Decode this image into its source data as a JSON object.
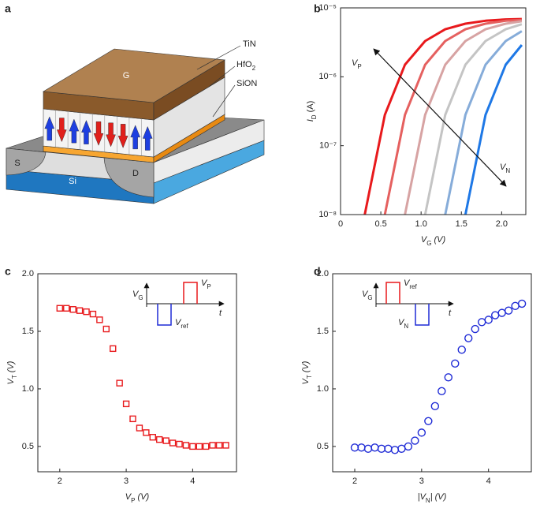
{
  "panel_labels": [
    "a",
    "b",
    "c",
    "d"
  ],
  "diagram": {
    "labels": {
      "tin": "TiN",
      "hfo2": [
        {
          "t": "HfO"
        },
        {
          "sub": "2"
        }
      ],
      "sion": "SiON",
      "gate": "G",
      "source": "S",
      "drain": "D",
      "substrate": "Si"
    }
  },
  "chart_data": [
    {
      "type": "line",
      "x": [
        0.3,
        0.55,
        0.8,
        1.05,
        1.3,
        1.55,
        1.8,
        2.05,
        2.25
      ],
      "xlim": [
        0,
        2.3
      ],
      "xticks": [
        0,
        0.5,
        {
          "value": 1,
          "label": "1.0"
        },
        1.5,
        {
          "value": 2,
          "label": "2.0"
        }
      ],
      "ylog": true,
      "ylim": [
        1e-08,
        1e-05
      ],
      "yticks": [
        {
          "value": 1e-08,
          "label": "10⁻⁸"
        },
        {
          "value": 1e-07,
          "label": "10⁻⁷"
        },
        {
          "value": 1e-06,
          "label": "10⁻⁶"
        },
        {
          "value": 1e-05,
          "label": "10⁻⁵"
        }
      ],
      "xlabel": [
        {
          "t": "V"
        },
        {
          "sub": "G"
        },
        {
          "t": " (V)"
        }
      ],
      "ylabel": [
        {
          "t": "I"
        },
        {
          "sub": "D"
        },
        {
          "t": " (A)"
        }
      ],
      "annotations": [
        [
          {
            "t": "V"
          },
          {
            "sub": "P"
          }
        ],
        [
          {
            "t": "V"
          },
          {
            "sub": "N"
          }
        ]
      ],
      "series": [
        {
          "color": "#e8191c",
          "values": [
            1e-08,
            2.8e-07,
            1.5e-06,
            3.3e-06,
            4.9e-06,
            5.9e-06,
            6.5e-06,
            6.8e-06,
            6.9e-06
          ]
        },
        {
          "color": "#e5605f",
          "values": [
            null,
            1e-08,
            2.8e-07,
            1.5e-06,
            3.3e-06,
            4.9e-06,
            5.9e-06,
            6.5e-06,
            6.7e-06
          ]
        },
        {
          "color": "#d7a3a3",
          "values": [
            null,
            null,
            1e-08,
            2.8e-07,
            1.5e-06,
            3.3e-06,
            4.9e-06,
            5.9e-06,
            6.4e-06
          ]
        },
        {
          "color": "#c4c4c4",
          "values": [
            null,
            null,
            null,
            1e-08,
            2.8e-07,
            1.5e-06,
            3.3e-06,
            4.9e-06,
            5.8e-06
          ]
        },
        {
          "color": "#86acd9",
          "values": [
            null,
            null,
            null,
            null,
            1e-08,
            2.8e-07,
            1.5e-06,
            3.3e-06,
            4.6e-06
          ]
        },
        {
          "color": "#1e78e6",
          "values": [
            null,
            null,
            null,
            null,
            null,
            1e-08,
            2.8e-07,
            1.5e-06,
            2.9e-06
          ]
        }
      ]
    },
    {
      "type": "scatter",
      "marker": "square",
      "color": "#e8191c",
      "x": [
        2.0,
        2.1,
        2.2,
        2.3,
        2.4,
        2.5,
        2.6,
        2.7,
        2.8,
        2.9,
        3.0,
        3.1,
        3.2,
        3.3,
        3.4,
        3.5,
        3.6,
        3.7,
        3.8,
        3.9,
        4.0,
        4.1,
        4.2,
        4.3,
        4.4,
        4.5
      ],
      "values": [
        1.7,
        1.7,
        1.69,
        1.68,
        1.67,
        1.65,
        1.6,
        1.52,
        1.35,
        1.05,
        0.87,
        0.74,
        0.66,
        0.62,
        0.58,
        0.56,
        0.55,
        0.53,
        0.52,
        0.51,
        0.5,
        0.5,
        0.5,
        0.51,
        0.51,
        0.51
      ],
      "xlim": [
        1.67,
        4.66
      ],
      "ylim": [
        0.28,
        2.0
      ],
      "xticks": [
        2,
        3,
        4
      ],
      "yticks": [
        0.5,
        {
          "value": 1,
          "label": "1.0"
        },
        1.5,
        {
          "value": 2,
          "label": "2.0"
        }
      ],
      "xlabel": [
        {
          "t": "V"
        },
        {
          "sub": "P"
        },
        {
          "t": " (V)"
        }
      ],
      "ylabel": [
        {
          "t": "V"
        },
        {
          "sub": "T"
        },
        {
          "t": " (V)"
        }
      ],
      "inset": {
        "first": "down",
        "axis_label": [
          {
            "t": "V"
          },
          {
            "sub": "G"
          }
        ],
        "upper_label": [
          {
            "t": "V"
          },
          {
            "sub": "P"
          }
        ],
        "lower_label": [
          {
            "t": "V"
          },
          {
            "sub": "ref"
          }
        ],
        "time_label": "t"
      }
    },
    {
      "type": "scatter",
      "marker": "circle",
      "color": "#1f2bd6",
      "x": [
        2.0,
        2.1,
        2.2,
        2.3,
        2.4,
        2.5,
        2.6,
        2.7,
        2.8,
        2.9,
        3.0,
        3.1,
        3.2,
        3.3,
        3.4,
        3.5,
        3.6,
        3.7,
        3.8,
        3.9,
        4.0,
        4.1,
        4.2,
        4.3,
        4.4,
        4.5
      ],
      "values": [
        0.49,
        0.49,
        0.48,
        0.49,
        0.48,
        0.48,
        0.47,
        0.48,
        0.5,
        0.55,
        0.62,
        0.72,
        0.85,
        0.98,
        1.1,
        1.22,
        1.34,
        1.44,
        1.52,
        1.58,
        1.6,
        1.64,
        1.66,
        1.68,
        1.72,
        1.74
      ],
      "xlim": [
        1.67,
        4.64
      ],
      "ylim": [
        0.28,
        2.0
      ],
      "xticks": [
        2,
        3,
        4
      ],
      "yticks": [
        0.5,
        {
          "value": 1,
          "label": "1.0"
        },
        1.5,
        {
          "value": 2,
          "label": "2.0"
        }
      ],
      "xlabel": [
        {
          "t": "|V"
        },
        {
          "sub": "N"
        },
        {
          "t": "| (V)"
        }
      ],
      "ylabel": [
        {
          "t": "V"
        },
        {
          "sub": "T"
        },
        {
          "t": " (V)"
        }
      ],
      "inset": {
        "first": "up",
        "axis_label": [
          {
            "t": "V"
          },
          {
            "sub": "G"
          }
        ],
        "upper_label": [
          {
            "t": "V"
          },
          {
            "sub": "ref"
          }
        ],
        "lower_label": [
          {
            "t": "V"
          },
          {
            "sub": "N"
          }
        ],
        "time_label": "t"
      }
    }
  ]
}
